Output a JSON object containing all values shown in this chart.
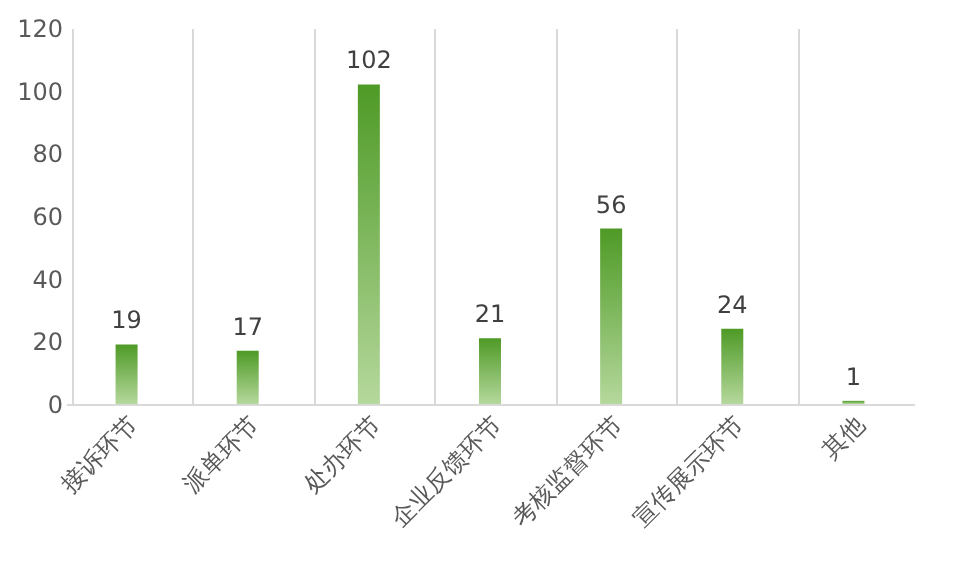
{
  "chart_data": {
    "type": "bar",
    "categories": [
      "接诉环节",
      "派单环节",
      "处办环节",
      "企业反馈环节",
      "考核监督环节",
      "宣传展示环节",
      "其他"
    ],
    "values": [
      19,
      17,
      102,
      21,
      56,
      24,
      1
    ],
    "color": "#4e9a26",
    "ylim": [
      0,
      120
    ],
    "yticks": [
      0,
      20,
      40,
      60,
      80,
      100,
      120
    ],
    "grid": "x",
    "data_labels": true
  }
}
